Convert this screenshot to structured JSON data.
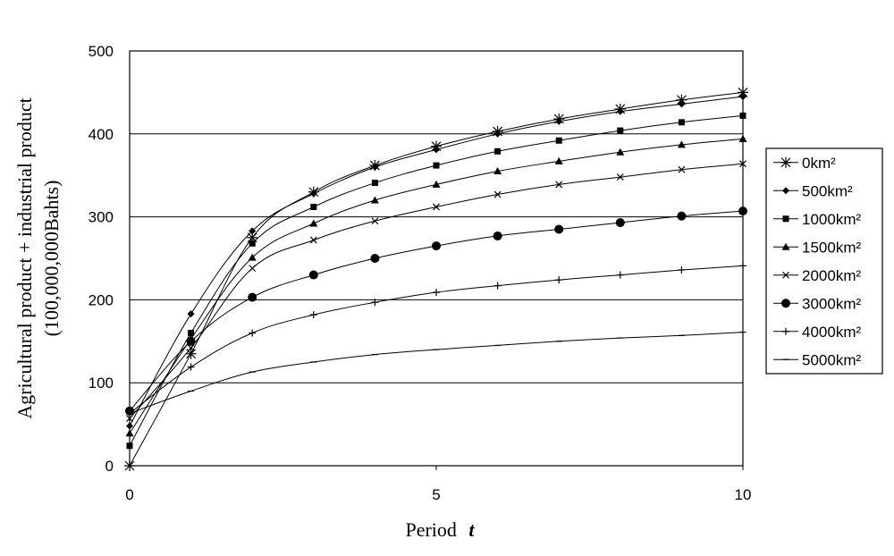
{
  "chart_data": {
    "type": "line",
    "xlabel": "Period",
    "xlabel_var": "t",
    "ylabel_line1": "Agricultural product + industrial product",
    "ylabel_line2": "(100,000,000Bahts)",
    "xlim": [
      0,
      10
    ],
    "ylim": [
      0,
      500
    ],
    "x_ticks": [
      0,
      5,
      10
    ],
    "y_ticks": [
      0,
      100,
      200,
      300,
      400,
      500
    ],
    "grid": "horizontal",
    "legend_position": "right",
    "x": [
      0,
      1,
      2,
      3,
      4,
      5,
      6,
      7,
      8,
      9,
      10
    ],
    "series": [
      {
        "name": "0km²",
        "marker": "asterisk",
        "values": [
          0,
          135,
          275,
          330,
          362,
          385,
          403,
          418,
          430,
          441,
          450
        ]
      },
      {
        "name": "500km²",
        "marker": "diamond",
        "values": [
          48,
          183,
          283,
          328,
          360,
          381,
          400,
          415,
          427,
          436,
          445
        ]
      },
      {
        "name": "1000km²",
        "marker": "square",
        "values": [
          24,
          160,
          268,
          312,
          341,
          362,
          379,
          392,
          404,
          414,
          422
        ]
      },
      {
        "name": "1500km²",
        "marker": "triangle",
        "values": [
          39,
          153,
          251,
          292,
          320,
          339,
          355,
          367,
          378,
          387,
          394
        ]
      },
      {
        "name": "2000km²",
        "marker": "x",
        "values": [
          57,
          142,
          238,
          272,
          295,
          312,
          327,
          339,
          348,
          357,
          364
        ]
      },
      {
        "name": "3000km²",
        "marker": "circle",
        "values": [
          66,
          150,
          203,
          230,
          250,
          265,
          277,
          285,
          293,
          301,
          307
        ]
      },
      {
        "name": "4000km²",
        "marker": "plus",
        "values": [
          63,
          119,
          160,
          182,
          197,
          209,
          217,
          224,
          230,
          236,
          241
        ]
      },
      {
        "name": "5000km²",
        "marker": "dash",
        "values": [
          63,
          90,
          113,
          125,
          134,
          140,
          145,
          150,
          154,
          157,
          161
        ]
      }
    ]
  }
}
